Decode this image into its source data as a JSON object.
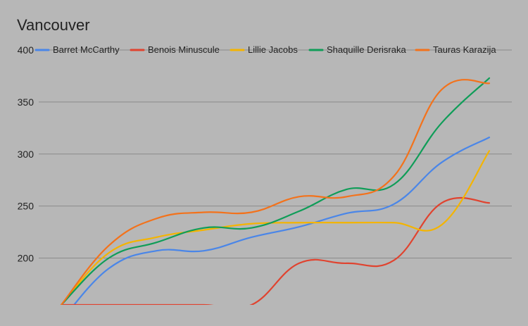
{
  "chart_data": {
    "type": "line",
    "title": "Vancouver",
    "xlabel": "",
    "ylabel": "",
    "ylim": [
      155,
      400
    ],
    "yticks": [
      200,
      250,
      300,
      350,
      400
    ],
    "grid": true,
    "legend_position": "top",
    "x": [
      0,
      1,
      2,
      3,
      4,
      5,
      6,
      7,
      8,
      9,
      10
    ],
    "series": [
      {
        "name": "Barret McCarthy",
        "color": "#4a86e8",
        "values": [
          140,
          190,
          207,
          207,
          220,
          230,
          243,
          252,
          292,
          316,
          null
        ]
      },
      {
        "name": "Benois Minuscule",
        "color": "#e0432f",
        "values": [
          155,
          155,
          155,
          155,
          155,
          195,
          195,
          198,
          253,
          253,
          null
        ]
      },
      {
        "name": "Lillie Jacobs",
        "color": "#f4b400",
        "values": [
          155,
          205,
          220,
          227,
          233,
          234,
          234,
          234,
          232,
          303,
          null
        ]
      },
      {
        "name": "Shaquille Derisraka",
        "color": "#0f9d58",
        "values": [
          155,
          200,
          215,
          229,
          229,
          245,
          266,
          271,
          330,
          373,
          null
        ]
      },
      {
        "name": "Tauras Karazija",
        "color": "#f3721b",
        "values": [
          155,
          212,
          238,
          244,
          244,
          259,
          259,
          279,
          362,
          368,
          null
        ]
      }
    ]
  }
}
